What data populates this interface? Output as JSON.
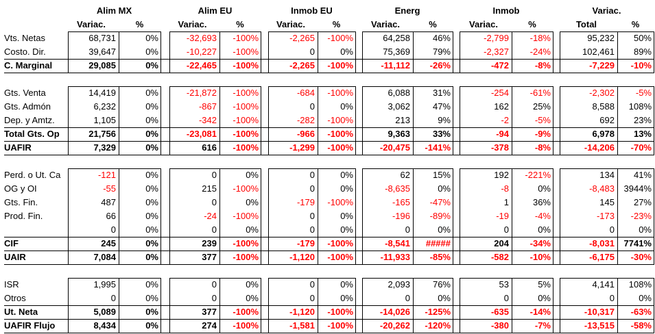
{
  "groups": [
    {
      "title": "Alim MX",
      "sub1": "Variac.",
      "sub2": "%"
    },
    {
      "title": "Alim EU",
      "sub1": "Variac.",
      "sub2": "%"
    },
    {
      "title": "Inmob EU",
      "sub1": "Variac.",
      "sub2": "%"
    },
    {
      "title": "Energ",
      "sub1": "Variac.",
      "sub2": "%"
    },
    {
      "title": "Inmob",
      "sub1": "Variac.",
      "sub2": "%"
    },
    {
      "title": "Variac.",
      "sub1": "Total",
      "sub2": "%"
    }
  ],
  "sections": [
    {
      "rows": [
        {
          "label": "Vts. Netas",
          "bold": false,
          "cells": [
            [
              "68,731",
              "0%"
            ],
            [
              "-32,693",
              "-100%"
            ],
            [
              "-2,265",
              "-100%"
            ],
            [
              "64,258",
              "46%"
            ],
            [
              "-2,799",
              "-18%"
            ],
            [
              "95,232",
              "50%"
            ]
          ]
        },
        {
          "label": "Costo. Dir.",
          "bold": false,
          "cells": [
            [
              "39,647",
              "0%"
            ],
            [
              "-10,227",
              "-100%"
            ],
            [
              "0",
              "0%"
            ],
            [
              "75,369",
              "79%"
            ],
            [
              "-2,327",
              "-24%"
            ],
            [
              "102,461",
              "89%"
            ]
          ]
        },
        {
          "label": "C. Marginal",
          "bold": true,
          "cells": [
            [
              "29,085",
              "0%"
            ],
            [
              "-22,465",
              "-100%"
            ],
            [
              "-2,265",
              "-100%"
            ],
            [
              "-11,112",
              "-26%"
            ],
            [
              "-472",
              "-8%"
            ],
            [
              "-7,229",
              "-10%"
            ]
          ]
        }
      ]
    },
    {
      "rows": [
        {
          "label": "Gts. Venta",
          "bold": false,
          "cells": [
            [
              "14,419",
              "0%"
            ],
            [
              "-21,872",
              "-100%"
            ],
            [
              "-684",
              "-100%"
            ],
            [
              "6,088",
              "31%"
            ],
            [
              "-254",
              "-61%"
            ],
            [
              "-2,302",
              "-5%"
            ]
          ]
        },
        {
          "label": "Gts. Admón",
          "bold": false,
          "cells": [
            [
              "6,232",
              "0%"
            ],
            [
              "-867",
              "-100%"
            ],
            [
              "0",
              "0%"
            ],
            [
              "3,062",
              "47%"
            ],
            [
              "162",
              "25%"
            ],
            [
              "8,588",
              "108%"
            ]
          ]
        },
        {
          "label": "Dep. y Amtz.",
          "bold": false,
          "cells": [
            [
              "1,105",
              "0%"
            ],
            [
              "-342",
              "-100%"
            ],
            [
              "-282",
              "-100%"
            ],
            [
              "213",
              "9%"
            ],
            [
              "-2",
              "-5%"
            ],
            [
              "692",
              "23%"
            ]
          ]
        },
        {
          "label": "Total Gts. Op",
          "bold": true,
          "cells": [
            [
              "21,756",
              "0%"
            ],
            [
              "-23,081",
              "-100%"
            ],
            [
              "-966",
              "-100%"
            ],
            [
              "9,363",
              "33%"
            ],
            [
              "-94",
              "-9%"
            ],
            [
              "6,978",
              "13%"
            ]
          ]
        },
        {
          "label": "UAFIR",
          "bold": true,
          "cells": [
            [
              "7,329",
              "0%"
            ],
            [
              "616",
              "-100%"
            ],
            [
              "-1,299",
              "-100%"
            ],
            [
              "-20,475",
              "-141%"
            ],
            [
              "-378",
              "-8%"
            ],
            [
              "-14,206",
              "-70%"
            ]
          ]
        }
      ]
    },
    {
      "rows": [
        {
          "label": "Perd. o Ut. Ca",
          "bold": false,
          "cells": [
            [
              "-121",
              "0%"
            ],
            [
              "0",
              "0%"
            ],
            [
              "0",
              "0%"
            ],
            [
              "62",
              "15%"
            ],
            [
              "192",
              "-221%"
            ],
            [
              "134",
              "41%"
            ]
          ]
        },
        {
          "label": "OG y OI",
          "bold": false,
          "cells": [
            [
              "-55",
              "0%"
            ],
            [
              "215",
              "-100%"
            ],
            [
              "0",
              "0%"
            ],
            [
              "-8,635",
              "0%"
            ],
            [
              "-8",
              "0%"
            ],
            [
              "-8,483",
              "3944%"
            ]
          ]
        },
        {
          "label": "Gts. Fin.",
          "bold": false,
          "cells": [
            [
              "487",
              "0%"
            ],
            [
              "0",
              "0%"
            ],
            [
              "-179",
              "-100%"
            ],
            [
              "-165",
              "-47%"
            ],
            [
              "1",
              "36%"
            ],
            [
              "145",
              "27%"
            ]
          ]
        },
        {
          "label": "Prod. Fin.",
          "bold": false,
          "cells": [
            [
              "66",
              "0%"
            ],
            [
              "-24",
              "-100%"
            ],
            [
              "0",
              "0%"
            ],
            [
              "-196",
              "-89%"
            ],
            [
              "-19",
              "-4%"
            ],
            [
              "-173",
              "-23%"
            ]
          ]
        },
        {
          "label": "",
          "bold": false,
          "cells": [
            [
              "0",
              "0%"
            ],
            [
              "0",
              "0%"
            ],
            [
              "0",
              "0%"
            ],
            [
              "0",
              "0%"
            ],
            [
              "0",
              "0%"
            ],
            [
              "0",
              "0%"
            ]
          ]
        },
        {
          "label": "CIF",
          "bold": true,
          "cells": [
            [
              "245",
              "0%"
            ],
            [
              "239",
              "-100%"
            ],
            [
              "-179",
              "-100%"
            ],
            [
              "-8,541",
              "#####"
            ],
            [
              "204",
              "-34%"
            ],
            [
              "-8,031",
              "7741%"
            ]
          ]
        },
        {
          "label": "UAIR",
          "bold": true,
          "cells": [
            [
              "7,084",
              "0%"
            ],
            [
              "377",
              "-100%"
            ],
            [
              "-1,120",
              "-100%"
            ],
            [
              "-11,933",
              "-85%"
            ],
            [
              "-582",
              "-10%"
            ],
            [
              "-6,175",
              "-30%"
            ]
          ]
        }
      ]
    },
    {
      "rows": [
        {
          "label": "ISR",
          "bold": false,
          "cells": [
            [
              "1,995",
              "0%"
            ],
            [
              "0",
              "0%"
            ],
            [
              "0",
              "0%"
            ],
            [
              "2,093",
              "76%"
            ],
            [
              "53",
              "5%"
            ],
            [
              "4,141",
              "108%"
            ]
          ]
        },
        {
          "label": "Otros",
          "bold": false,
          "cells": [
            [
              "0",
              "0%"
            ],
            [
              "0",
              "0%"
            ],
            [
              "0",
              "0%"
            ],
            [
              "0",
              "0%"
            ],
            [
              "0",
              "0%"
            ],
            [
              "0",
              "0%"
            ]
          ]
        },
        {
          "label": "Ut. Neta",
          "bold": true,
          "cells": [
            [
              "5,089",
              "0%"
            ],
            [
              "377",
              "-100%"
            ],
            [
              "-1,120",
              "-100%"
            ],
            [
              "-14,026",
              "-125%"
            ],
            [
              "-635",
              "-14%"
            ],
            [
              "-10,317",
              "-63%"
            ]
          ]
        },
        {
          "label": "UAFIR Flujo",
          "bold": true,
          "cells": [
            [
              "8,434",
              "0%"
            ],
            [
              "274",
              "-100%"
            ],
            [
              "-1,581",
              "-100%"
            ],
            [
              "-20,262",
              "-120%"
            ],
            [
              "-380",
              "-7%"
            ],
            [
              "-13,515",
              "-58%"
            ]
          ]
        }
      ]
    }
  ],
  "colors": {
    "negative": "#ff0000",
    "text": "#000000"
  }
}
